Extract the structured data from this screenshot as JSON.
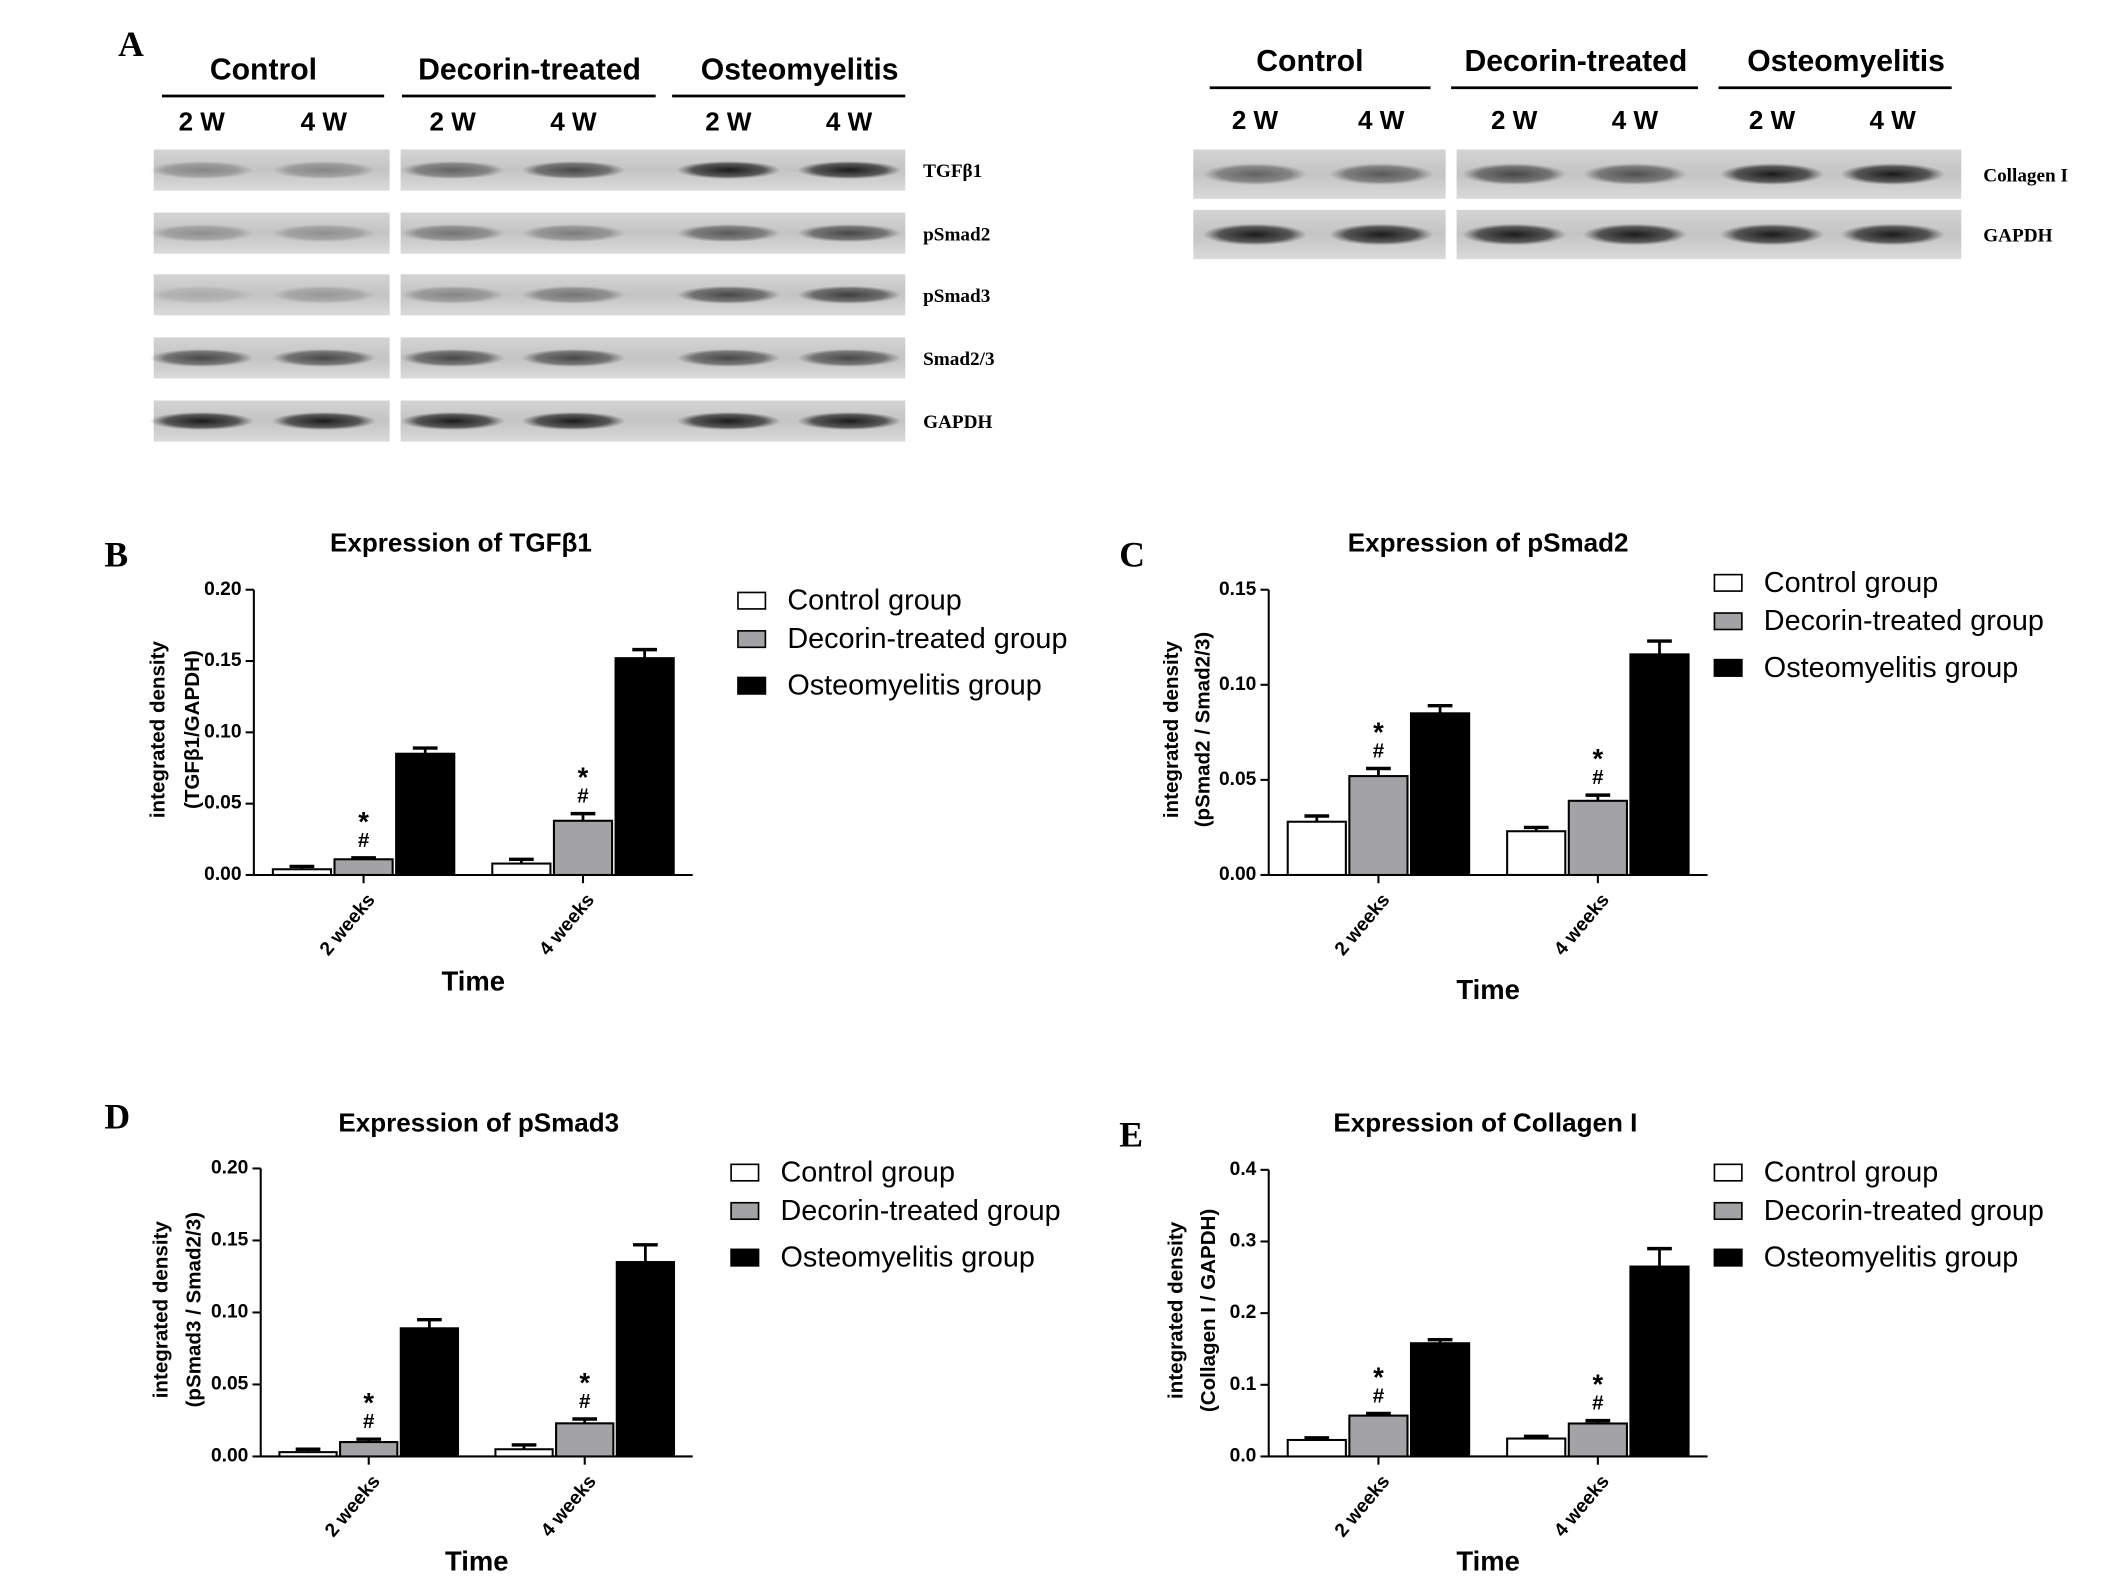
{
  "panel_a": {
    "label": "A",
    "blots": [
      {
        "groups": [
          "Control",
          "Decorin-treated",
          "Osteomyelitis"
        ],
        "lanes": [
          "2 W",
          "4 W",
          "2 W",
          "4 W",
          "2 W",
          "4 W"
        ],
        "proteins": [
          "TGFβ1",
          "pSmad2",
          "pSmad3",
          "Smad2/3",
          "GAPDH"
        ]
      },
      {
        "groups": [
          "Control",
          "Decorin-treated",
          "Osteomyelitis"
        ],
        "lanes": [
          "2 W",
          "4 W",
          "2 W",
          "4 W",
          "2 W",
          "4 W"
        ],
        "proteins": [
          "Collagen I",
          "GAPDH"
        ]
      }
    ]
  },
  "chart_data": [
    {
      "type": "bar",
      "label": "B",
      "title": "Expression of TGFβ1",
      "ylabel": [
        "integrated density",
        "(TGFβ1/GAPDH)"
      ],
      "xlabel": "Time",
      "categories": [
        "2 weeks",
        "4 weeks"
      ],
      "series": [
        {
          "name": "Control group",
          "color": "#ffffff",
          "values": [
            0.004,
            0.008
          ],
          "errors": [
            0.002,
            0.003
          ]
        },
        {
          "name": "Decorin-treated group",
          "color": "#a3a3a5",
          "values": [
            0.011,
            0.038
          ],
          "errors": [
            0.001,
            0.005
          ],
          "annotations": [
            [
              "*",
              "#"
            ],
            [
              "*",
              "#"
            ]
          ]
        },
        {
          "name": "Osteomyelitis group",
          "color": "#000000",
          "values": [
            0.085,
            0.152
          ],
          "errors": [
            0.004,
            0.006
          ]
        }
      ],
      "ylim": [
        0,
        0.2
      ],
      "yticks": [
        {
          "value": 0,
          "label": "0.00"
        },
        {
          "value": 0.05,
          "label": "0.05"
        },
        {
          "value": 0.1,
          "label": "0.10"
        },
        {
          "value": 0.15,
          "label": "0.15"
        },
        {
          "value": 0.2,
          "label": "0.20"
        }
      ]
    },
    {
      "type": "bar",
      "label": "C",
      "title": "Expression of pSmad2",
      "ylabel": [
        "integrated density",
        "(pSmad2 / Smad2/3)"
      ],
      "xlabel": "Time",
      "categories": [
        "2 weeks",
        "4 weeks"
      ],
      "series": [
        {
          "name": "Control group",
          "color": "#ffffff",
          "values": [
            0.028,
            0.023
          ],
          "errors": [
            0.003,
            0.002
          ]
        },
        {
          "name": "Decorin-treated group",
          "color": "#a3a3a5",
          "values": [
            0.052,
            0.039
          ],
          "errors": [
            0.004,
            0.003
          ],
          "annotations": [
            [
              "*",
              "#"
            ],
            [
              "*",
              "#"
            ]
          ]
        },
        {
          "name": "Osteomyelitis group",
          "color": "#000000",
          "values": [
            0.085,
            0.116
          ],
          "errors": [
            0.004,
            0.007
          ]
        }
      ],
      "ylim": [
        0,
        0.15
      ],
      "yticks": [
        {
          "value": 0,
          "label": "0.00"
        },
        {
          "value": 0.05,
          "label": "0.05"
        },
        {
          "value": 0.1,
          "label": "0.10"
        },
        {
          "value": 0.15,
          "label": "0.15"
        }
      ]
    },
    {
      "type": "bar",
      "label": "D",
      "title": "Expression of pSmad3",
      "ylabel": [
        "integrated density",
        "(pSmad3 / Smad2/3)"
      ],
      "xlabel": "Time",
      "categories": [
        "2 weeks",
        "4 weeks"
      ],
      "series": [
        {
          "name": "Control group",
          "color": "#ffffff",
          "values": [
            0.003,
            0.005
          ],
          "errors": [
            0.002,
            0.003
          ]
        },
        {
          "name": "Decorin-treated group",
          "color": "#a3a3a5",
          "values": [
            0.01,
            0.023
          ],
          "errors": [
            0.002,
            0.003
          ],
          "annotations": [
            [
              "*",
              "#"
            ],
            [
              "*",
              "#"
            ]
          ]
        },
        {
          "name": "Osteomyelitis group",
          "color": "#000000",
          "values": [
            0.089,
            0.135
          ],
          "errors": [
            0.006,
            0.012
          ]
        }
      ],
      "ylim": [
        0,
        0.2
      ],
      "yticks": [
        {
          "value": 0,
          "label": "0.00"
        },
        {
          "value": 0.05,
          "label": "0.05"
        },
        {
          "value": 0.1,
          "label": "0.10"
        },
        {
          "value": 0.15,
          "label": "0.15"
        },
        {
          "value": 0.2,
          "label": "0.20"
        }
      ]
    },
    {
      "type": "bar",
      "label": "E",
      "title": "Expression of Collagen I",
      "ylabel": [
        "integrated density",
        "(Collagen I / GAPDH)"
      ],
      "xlabel": "Time",
      "categories": [
        "2 weeks",
        "4 weeks"
      ],
      "series": [
        {
          "name": "Control group",
          "color": "#ffffff",
          "values": [
            0.023,
            0.025
          ],
          "errors": [
            0.003,
            0.003
          ]
        },
        {
          "name": "Decorin-treated group",
          "color": "#a3a3a5",
          "values": [
            0.057,
            0.046
          ],
          "errors": [
            0.003,
            0.004
          ],
          "annotations": [
            [
              "*",
              "#"
            ],
            [
              "*",
              "#"
            ]
          ]
        },
        {
          "name": "Osteomyelitis group",
          "color": "#000000",
          "values": [
            0.158,
            0.265
          ],
          "errors": [
            0.005,
            0.025
          ]
        }
      ],
      "ylim": [
        0,
        0.4
      ],
      "yticks": [
        {
          "value": 0,
          "label": "0.0"
        },
        {
          "value": 0.1,
          "label": "0.1"
        },
        {
          "value": 0.2,
          "label": "0.2"
        },
        {
          "value": 0.3,
          "label": "0.3"
        },
        {
          "value": 0.4,
          "label": "0.4"
        }
      ]
    }
  ]
}
